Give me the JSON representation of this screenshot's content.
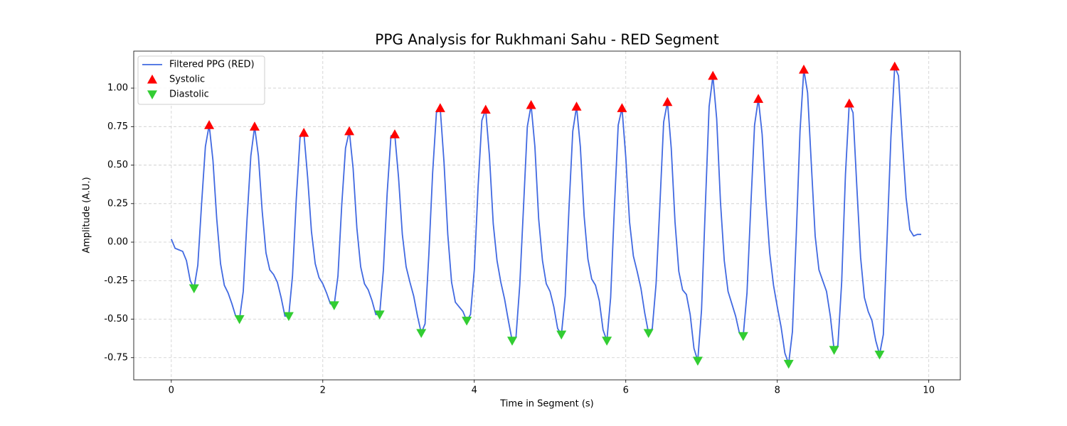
{
  "chart_data": {
    "type": "line",
    "title": "PPG Analysis for Rukhmani Sahu - RED Segment",
    "xlabel": "Time in Segment (s)",
    "ylabel": "Amplitude (A.U.)",
    "xlim": [
      -0.496,
      10.416
    ],
    "ylim": [
      -0.894,
      1.24
    ],
    "xticks": [
      0,
      2,
      4,
      6,
      8,
      10
    ],
    "yticks": [
      -0.75,
      {
        "value": -0.5,
        "label": "-0.50"
      },
      -0.25,
      {
        "value": 0,
        "label": "0.00"
      },
      0.25,
      {
        "value": 0.5,
        "label": "0.50"
      },
      0.75,
      {
        "value": 1,
        "label": "1.00"
      }
    ],
    "grid": true,
    "legend": "upper-left",
    "series": [
      {
        "name": "Filtered PPG (RED)",
        "kind": "line",
        "color": "#4169e1",
        "x": [
          0,
          0.05,
          0.1,
          0.15,
          0.2,
          0.25,
          0.3,
          0.35,
          0.4,
          0.45,
          0.5,
          0.55,
          0.6,
          0.65,
          0.7,
          0.75,
          0.8,
          0.85,
          0.9,
          0.95,
          1.0,
          1.05,
          1.1,
          1.15,
          1.2,
          1.25,
          1.3,
          1.35,
          1.4,
          1.45,
          1.5,
          1.55,
          1.6,
          1.65,
          1.7,
          1.75,
          1.8,
          1.85,
          1.9,
          1.95,
          2.0,
          2.05,
          2.1,
          2.15,
          2.2,
          2.25,
          2.3,
          2.35,
          2.4,
          2.45,
          2.5,
          2.55,
          2.6,
          2.65,
          2.7,
          2.75,
          2.8,
          2.85,
          2.9,
          2.95,
          3.0,
          3.05,
          3.1,
          3.15,
          3.2,
          3.25,
          3.3,
          3.35,
          3.4,
          3.45,
          3.5,
          3.55,
          3.6,
          3.65,
          3.7,
          3.75,
          3.8,
          3.85,
          3.9,
          3.95,
          4.0,
          4.05,
          4.1,
          4.15,
          4.2,
          4.25,
          4.3,
          4.35,
          4.4,
          4.45,
          4.5,
          4.55,
          4.6,
          4.65,
          4.7,
          4.75,
          4.8,
          4.85,
          4.9,
          4.95,
          5.0,
          5.05,
          5.1,
          5.15,
          5.2,
          5.25,
          5.3,
          5.35,
          5.4,
          5.45,
          5.5,
          5.55,
          5.6,
          5.65,
          5.7,
          5.75,
          5.8,
          5.85,
          5.9,
          5.95,
          6.0,
          6.05,
          6.1,
          6.15,
          6.2,
          6.25,
          6.3,
          6.35,
          6.4,
          6.45,
          6.5,
          6.55,
          6.6,
          6.65,
          6.7,
          6.75,
          6.8,
          6.85,
          6.9,
          6.95,
          7.0,
          7.05,
          7.1,
          7.15,
          7.2,
          7.25,
          7.3,
          7.35,
          7.4,
          7.45,
          7.5,
          7.55,
          7.6,
          7.65,
          7.7,
          7.75,
          7.8,
          7.85,
          7.9,
          7.95,
          8.0,
          8.05,
          8.1,
          8.15,
          8.2,
          8.25,
          8.3,
          8.35,
          8.4,
          8.45,
          8.5,
          8.55,
          8.6,
          8.65,
          8.7,
          8.75,
          8.8,
          8.85,
          8.9,
          8.95,
          9.0,
          9.05,
          9.1,
          9.15,
          9.2,
          9.25,
          9.3,
          9.35,
          9.4,
          9.45,
          9.5,
          9.55,
          9.6,
          9.65,
          9.7,
          9.75,
          9.8,
          9.85,
          9.9
        ],
        "values": [
          0.02,
          -0.04,
          -0.05,
          -0.06,
          -0.12,
          -0.25,
          -0.3,
          -0.15,
          0.25,
          0.62,
          0.76,
          0.53,
          0.15,
          -0.14,
          -0.28,
          -0.33,
          -0.4,
          -0.48,
          -0.5,
          -0.32,
          0.15,
          0.56,
          0.75,
          0.56,
          0.2,
          -0.07,
          -0.18,
          -0.21,
          -0.26,
          -0.36,
          -0.48,
          -0.48,
          -0.22,
          0.28,
          0.68,
          0.71,
          0.42,
          0.07,
          -0.14,
          -0.23,
          -0.27,
          -0.33,
          -0.4,
          -0.41,
          -0.22,
          0.24,
          0.61,
          0.72,
          0.48,
          0.09,
          -0.16,
          -0.27,
          -0.31,
          -0.38,
          -0.47,
          -0.47,
          -0.18,
          0.32,
          0.69,
          0.7,
          0.42,
          0.05,
          -0.16,
          -0.26,
          -0.35,
          -0.48,
          -0.59,
          -0.53,
          -0.08,
          0.45,
          0.84,
          0.87,
          0.52,
          0.05,
          -0.26,
          -0.39,
          -0.42,
          -0.45,
          -0.51,
          -0.47,
          -0.18,
          0.36,
          0.79,
          0.86,
          0.56,
          0.12,
          -0.12,
          -0.26,
          -0.37,
          -0.51,
          -0.64,
          -0.62,
          -0.28,
          0.23,
          0.75,
          0.89,
          0.62,
          0.15,
          -0.12,
          -0.27,
          -0.32,
          -0.42,
          -0.56,
          -0.6,
          -0.35,
          0.22,
          0.72,
          0.88,
          0.62,
          0.17,
          -0.11,
          -0.24,
          -0.28,
          -0.38,
          -0.57,
          -0.64,
          -0.36,
          0.23,
          0.76,
          0.87,
          0.55,
          0.13,
          -0.09,
          -0.19,
          -0.3,
          -0.46,
          -0.59,
          -0.56,
          -0.27,
          0.24,
          0.78,
          0.91,
          0.61,
          0.13,
          -0.19,
          -0.31,
          -0.34,
          -0.47,
          -0.69,
          -0.77,
          -0.44,
          0.23,
          0.88,
          1.08,
          0.8,
          0.26,
          -0.12,
          -0.32,
          -0.4,
          -0.48,
          -0.59,
          -0.61,
          -0.33,
          0.23,
          0.76,
          0.93,
          0.7,
          0.27,
          -0.07,
          -0.28,
          -0.42,
          -0.55,
          -0.72,
          -0.79,
          -0.58,
          0.04,
          0.72,
          1.12,
          0.97,
          0.5,
          0.04,
          -0.18,
          -0.25,
          -0.32,
          -0.48,
          -0.7,
          -0.67,
          -0.26,
          0.44,
          0.9,
          0.84,
          0.36,
          -0.1,
          -0.36,
          -0.45,
          -0.51,
          -0.64,
          -0.73,
          -0.6,
          0.03,
          0.68,
          1.14,
          1.08,
          0.67,
          0.29,
          0.08,
          0.04,
          0.05,
          0.05
        ]
      },
      {
        "name": "Systolic",
        "kind": "marker-up",
        "color": "#ff0000",
        "x": [
          0.5,
          1.1,
          1.75,
          2.35,
          2.95,
          3.55,
          4.15,
          4.75,
          5.35,
          5.95,
          6.55,
          7.15,
          7.75,
          8.35,
          8.95,
          9.55
        ],
        "values": [
          0.76,
          0.75,
          0.71,
          0.72,
          0.7,
          0.87,
          0.86,
          0.89,
          0.88,
          0.87,
          0.91,
          1.08,
          0.93,
          1.12,
          0.9,
          1.14
        ]
      },
      {
        "name": "Diastolic",
        "kind": "marker-down",
        "color": "#32cd32",
        "x": [
          0.3,
          0.9,
          1.55,
          2.15,
          2.75,
          3.3,
          3.9,
          4.5,
          5.15,
          5.75,
          6.3,
          6.95,
          7.55,
          8.15,
          8.75,
          9.35
        ],
        "values": [
          -0.3,
          -0.5,
          -0.48,
          -0.41,
          -0.47,
          -0.59,
          -0.51,
          -0.64,
          -0.6,
          -0.64,
          -0.59,
          -0.77,
          -0.61,
          -0.79,
          -0.7,
          -0.73
        ]
      }
    ]
  }
}
